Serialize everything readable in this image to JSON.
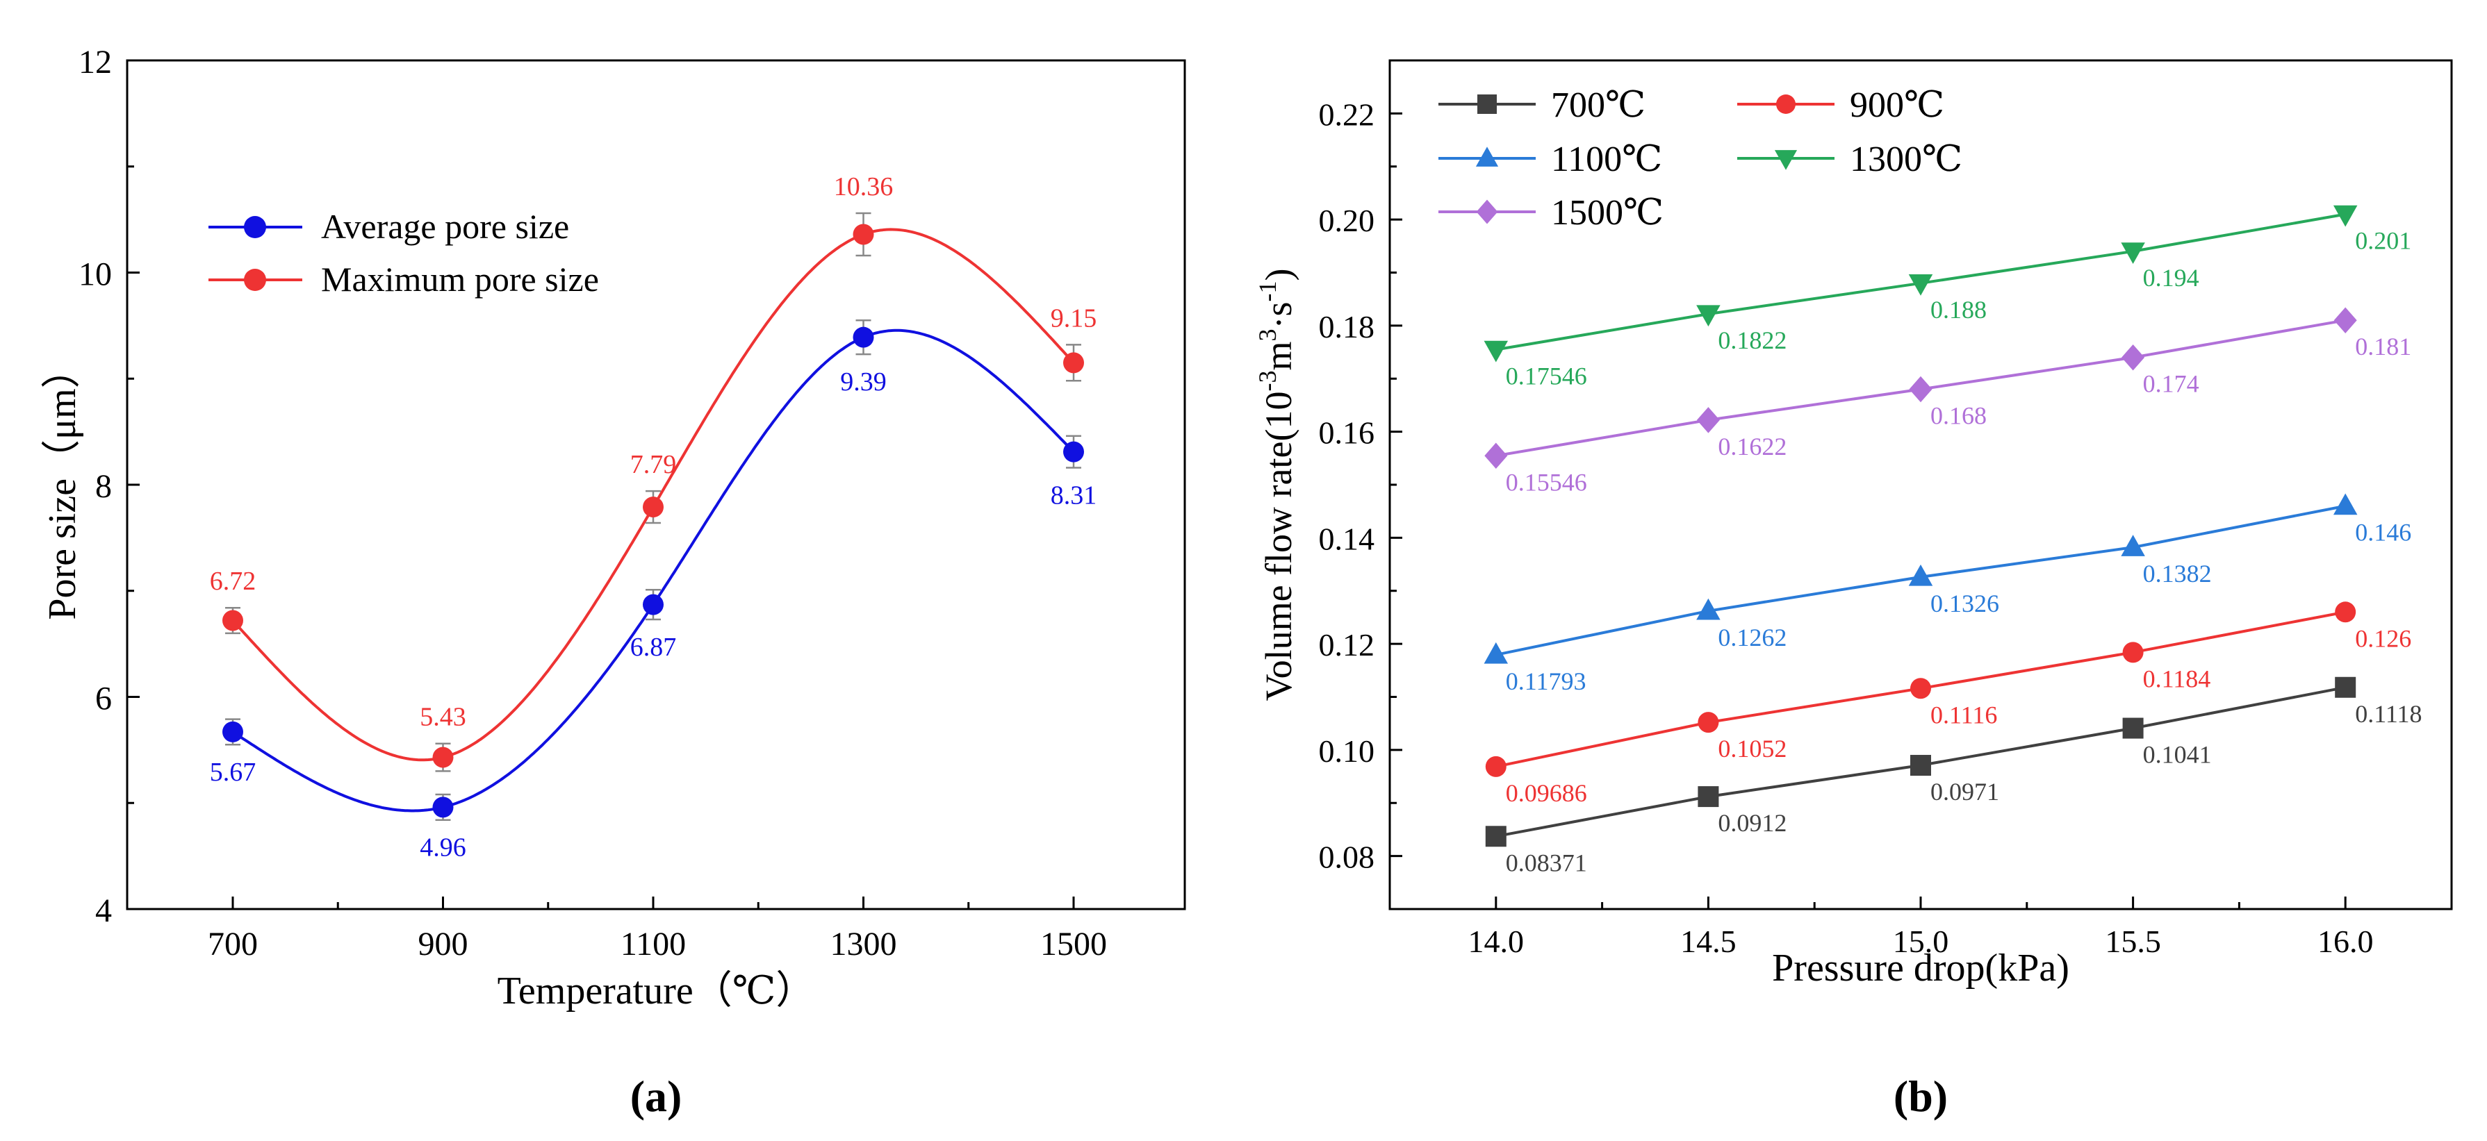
{
  "chart_data": [
    {
      "panel": "a",
      "type": "line",
      "caption": "(a)",
      "xlabel": "Temperature（℃）",
      "ylabel": "Pore size（μm）",
      "categories": [
        "700",
        "900",
        "1100",
        "1300",
        "1500"
      ],
      "ylim": [
        4,
        12
      ],
      "yticks": [
        "4",
        "6",
        "8",
        "10",
        "12"
      ],
      "legend_position": "top-left",
      "series": [
        {
          "name": "Average pore size",
          "color": "#1010e0",
          "marker": "circle",
          "values": [
            5.67,
            4.96,
            6.87,
            9.39,
            8.31
          ],
          "errors": [
            0.12,
            0.12,
            0.14,
            0.16,
            0.15
          ],
          "labels": [
            "5.67",
            "4.96",
            "6.87",
            "9.39",
            "8.31"
          ]
        },
        {
          "name": "Maximum pore size",
          "color": "#ee3333",
          "marker": "circle",
          "values": [
            6.72,
            5.43,
            7.79,
            10.36,
            9.15
          ],
          "errors": [
            0.12,
            0.13,
            0.15,
            0.2,
            0.17
          ],
          "labels": [
            "6.72",
            "5.43",
            "7.79",
            "10.36",
            "9.15"
          ]
        }
      ]
    },
    {
      "panel": "b",
      "type": "line",
      "caption": "(b)",
      "xlabel": "Pressure drop(kPa)",
      "ylabel_main": "Volume flow rate(10",
      "ylabel_sup1": "-3",
      "ylabel_mid": "m",
      "ylabel_sup2": "3",
      "ylabel_mid2": "·s",
      "ylabel_sup3": "-1",
      "ylabel_end": ")",
      "x": [
        14.0,
        14.5,
        15.0,
        15.5,
        16.0
      ],
      "xticks": [
        "14.0",
        "14.5",
        "15.0",
        "15.5",
        "16.0"
      ],
      "xlim": [
        13.75,
        16.25
      ],
      "ylim": [
        0.07,
        0.23
      ],
      "yticks": [
        "0.08",
        "0.10",
        "0.12",
        "0.14",
        "0.16",
        "0.18",
        "0.20",
        "0.22"
      ],
      "legend_position": "top-left",
      "series": [
        {
          "name": "700℃",
          "color": "#404040",
          "marker": "square",
          "values": [
            0.08371,
            0.0912,
            0.0971,
            0.1041,
            0.1118
          ],
          "labels": [
            "0.08371",
            "0.0912",
            "0.0971",
            "0.1041",
            "0.1118"
          ]
        },
        {
          "name": "900℃",
          "color": "#ee3333",
          "marker": "circle",
          "values": [
            0.09686,
            0.1052,
            0.1116,
            0.1184,
            0.126
          ],
          "labels": [
            "0.09686",
            "0.1052",
            "0.1116",
            "0.1184",
            "0.126"
          ]
        },
        {
          "name": "1100℃",
          "color": "#2a7bd8",
          "marker": "triangle-up",
          "values": [
            0.11793,
            0.1262,
            0.1326,
            0.1382,
            0.146
          ],
          "labels": [
            "0.11793",
            "0.1262",
            "0.1326",
            "0.1382",
            "0.146"
          ]
        },
        {
          "name": "1300℃",
          "color": "#26a85a",
          "marker": "triangle-down",
          "values": [
            0.17546,
            0.1822,
            0.188,
            0.194,
            0.201
          ],
          "labels": [
            "0.17546",
            "0.1822",
            "0.188",
            "0.194",
            "0.201"
          ]
        },
        {
          "name": "1500℃",
          "color": "#b070d8",
          "marker": "diamond",
          "values": [
            0.15546,
            0.1622,
            0.168,
            0.174,
            0.181
          ],
          "labels": [
            "0.15546",
            "0.1622",
            "0.168",
            "0.174",
            "0.181"
          ]
        }
      ]
    }
  ]
}
